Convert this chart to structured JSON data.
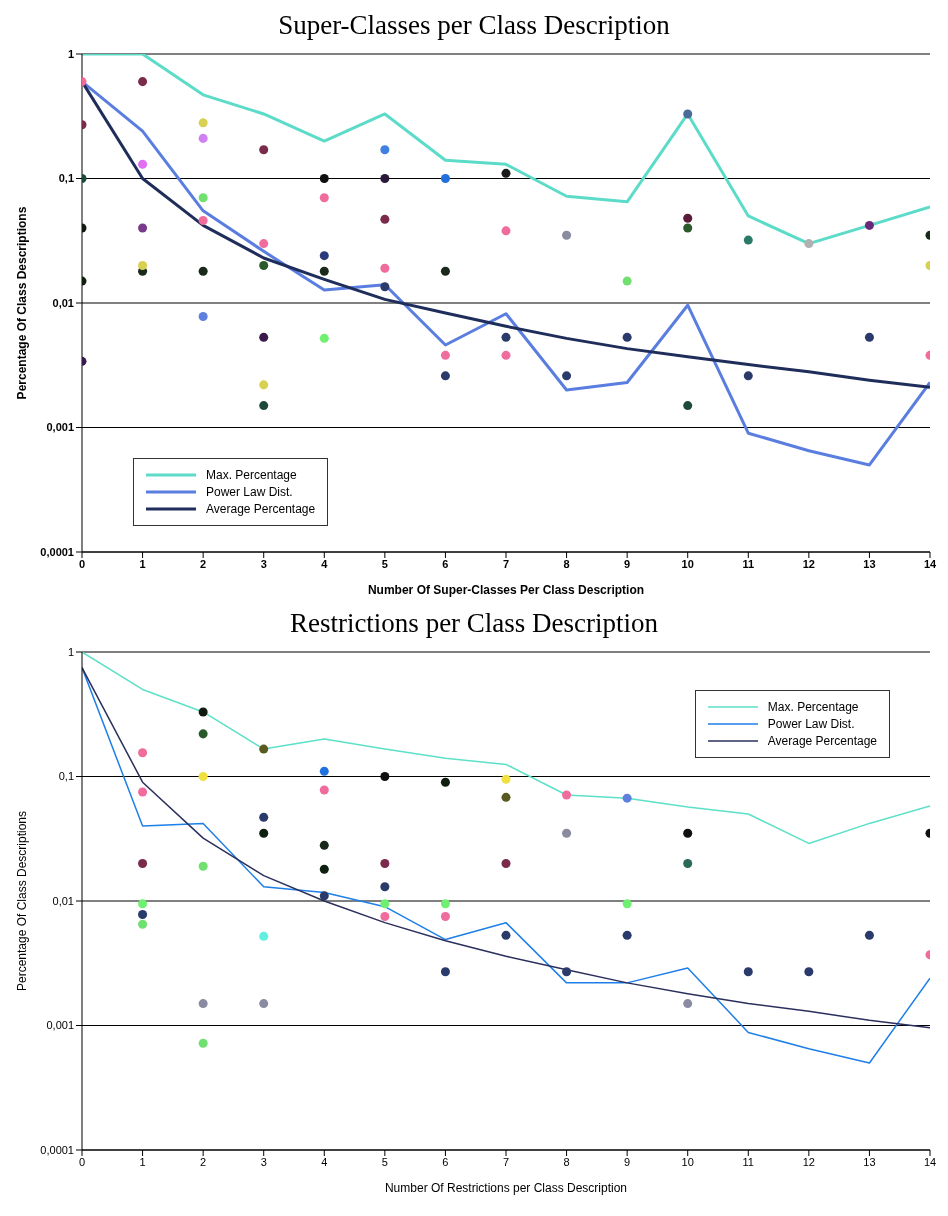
{
  "chart_data": [
    {
      "type": "line",
      "title": "Super-Classes per Class Description",
      "xlabel": "Number Of Super-Classes Per Class Description",
      "ylabel": "Percentage Of Class Descriptions",
      "x": [
        0,
        1,
        2,
        3,
        4,
        5,
        6,
        7,
        8,
        9,
        10,
        11,
        12,
        13,
        14
      ],
      "log": "y",
      "xlim": [
        0,
        14
      ],
      "xticks": [
        0,
        1,
        2,
        3,
        4,
        5,
        6,
        7,
        8,
        9,
        10,
        11,
        12,
        13,
        14
      ],
      "ylim": [
        0.0001,
        1
      ],
      "yticks": [
        {
          "value": 0.0001,
          "label": "0,0001"
        },
        {
          "value": 0.001,
          "label": "0,001"
        },
        {
          "value": 0.01,
          "label": "0,01"
        },
        {
          "value": 0.1,
          "label": "0,1"
        },
        1
      ],
      "grid": "y",
      "legend": "bottom left",
      "marker": "none",
      "line_style": "solid",
      "series": [
        {
          "name": "Max. Percentage",
          "color": "#5cdcc8",
          "values": [
            1,
            1,
            0.47,
            0.33,
            0.2,
            0.33,
            0.14,
            0.13,
            0.072,
            0.065,
            0.33,
            0.05,
            0.03,
            0.042,
            0.059
          ]
        },
        {
          "name": "Power Law Dist.",
          "color": "#5a7de0",
          "values": [
            0.6,
            0.24,
            0.055,
            0.026,
            0.0127,
            0.014,
            0.0046,
            0.0082,
            0.002,
            0.0023,
            0.0096,
            0.0009,
            0.00065,
            0.0005,
            0.0023
          ]
        },
        {
          "name": "Average Percentage",
          "color": "#1f2d5a",
          "values": [
            0.6,
            0.1,
            0.042,
            0.023,
            0.0155,
            0.0107,
            0.0083,
            0.0065,
            0.0052,
            0.0043,
            0.0037,
            0.0032,
            0.0028,
            0.0024,
            0.0021
          ]
        },
        {
          "type": "scatter",
          "marker": "circle",
          "x": [
            0,
            0,
            0,
            0,
            0,
            0,
            1,
            1,
            1,
            1,
            1,
            2,
            2,
            2,
            2,
            2,
            2,
            3,
            3,
            3,
            3,
            3,
            3,
            4,
            4,
            4,
            4,
            4,
            5,
            5,
            5,
            5,
            5,
            6,
            6,
            6,
            6,
            7,
            7,
            7,
            7,
            8,
            8,
            9,
            9,
            10,
            10,
            10,
            10,
            11,
            11,
            12,
            13,
            13,
            14,
            14,
            14
          ],
          "values": [
            0.1,
            0.04,
            0.015,
            0.0034,
            0.6,
            0.27,
            0.6,
            0.04,
            0.018,
            0.02,
            0.13,
            0.28,
            0.21,
            0.07,
            0.046,
            0.018,
            0.0078,
            0.17,
            0.03,
            0.0053,
            0.0015,
            0.0022,
            0.02,
            0.07,
            0.024,
            0.0052,
            0.018,
            0.1,
            0.1,
            0.047,
            0.019,
            0.0135,
            0.17,
            0.1,
            0.0038,
            0.0026,
            0.018,
            0.11,
            0.038,
            0.0053,
            0.0038,
            0.0026,
            0.035,
            0.0053,
            0.015,
            0.33,
            0.048,
            0.0015,
            0.04,
            0.0026,
            0.032,
            0.03,
            0.0053,
            0.042,
            0.0038,
            0.035,
            0.02
          ],
          "colors": [
            "#1f4a3a",
            "#101a10",
            "#102010",
            "#3a1a4a",
            "#f06c9c",
            "#7a2a4a",
            "#7a2a4a",
            "#7a3a8a",
            "#1a2a1a",
            "#d8d050",
            "#e070f0",
            "#d8d050",
            "#d080f0",
            "#70e070",
            "#f06c9c",
            "#1a2a1a",
            "#6080e0",
            "#7a2a4a",
            "#f06c9c",
            "#3a1a4a",
            "#1f4a3a",
            "#d8d050",
            "#2a5a2a",
            "#f06c9c",
            "#2a3a7a",
            "#70f070",
            "#1a2a1a",
            "#101010",
            "#2a1a3a",
            "#7a2a4a",
            "#f06c9c",
            "#2a3a6a",
            "#4080e0",
            "#2070e0",
            "#f06c9c",
            "#2a3a6a",
            "#1a2a1a",
            "#1a1a1a",
            "#f06c9c",
            "#2a3a6a",
            "#f06c9c",
            "#2a3a6a",
            "#8a8aa0",
            "#2a3a6a",
            "#70e070",
            "#4a6a9a",
            "#5a1a3a",
            "#1f4a3a",
            "#2a5a2a",
            "#2a3a6a",
            "#2a7a6a",
            "#b0b0b0",
            "#2a3a6a",
            "#6a2a7a",
            "#f06c9c",
            "#1a2a1a",
            "#d8d050"
          ]
        }
      ]
    },
    {
      "type": "line",
      "title": "Restrictions per Class Description",
      "xlabel": "Number Of Restrictions per Class Description",
      "ylabel": "Percentage Of Class Descriptions",
      "x": [
        0,
        1,
        2,
        3,
        4,
        5,
        6,
        7,
        8,
        9,
        10,
        11,
        12,
        13,
        14
      ],
      "log": "y",
      "xlim": [
        0,
        14
      ],
      "xticks": [
        0,
        1,
        2,
        3,
        4,
        5,
        6,
        7,
        8,
        9,
        10,
        11,
        12,
        13,
        14
      ],
      "ylim": [
        0.0001,
        1
      ],
      "yticks": [
        {
          "value": 0.0001,
          "label": "0,0001"
        },
        {
          "value": 0.001,
          "label": "0,001"
        },
        {
          "value": 0.01,
          "label": "0,01"
        },
        {
          "value": 0.1,
          "label": "0,1"
        },
        1
      ],
      "grid": "y",
      "legend": "top right",
      "marker": "none",
      "line_style": "solid",
      "series": [
        {
          "name": "Max. Percentage",
          "color": "#5ce0c8",
          "values": [
            1,
            0.5,
            0.33,
            0.166,
            0.2,
            0.166,
            0.14,
            0.125,
            0.071,
            0.067,
            0.057,
            0.05,
            0.029,
            0.042,
            0.058
          ]
        },
        {
          "name": "Power Law Dist.",
          "color": "#1e7fe8",
          "values": [
            0.75,
            0.04,
            0.042,
            0.013,
            0.0117,
            0.009,
            0.0049,
            0.0067,
            0.0022,
            0.0022,
            0.0029,
            0.00088,
            0.00065,
            0.0005,
            0.0024
          ]
        },
        {
          "name": "Average Percentage",
          "color": "#2a2f5c",
          "values": [
            0.75,
            0.09,
            0.032,
            0.016,
            0.01,
            0.0067,
            0.0048,
            0.0036,
            0.0028,
            0.0022,
            0.0018,
            0.0015,
            0.0013,
            0.0011,
            0.00096
          ]
        },
        {
          "type": "scatter",
          "marker": "circle",
          "x": [
            1,
            1,
            1,
            1,
            1,
            1,
            2,
            2,
            2,
            2,
            2,
            2,
            3,
            3,
            3,
            3,
            3,
            4,
            4,
            4,
            4,
            4,
            5,
            5,
            5,
            5,
            5,
            6,
            6,
            6,
            6,
            7,
            7,
            7,
            7,
            8,
            8,
            8,
            9,
            9,
            9,
            10,
            10,
            10,
            11,
            12,
            13,
            14,
            14
          ],
          "values": [
            0.0078,
            0.0065,
            0.02,
            0.155,
            0.075,
            0.0095,
            0.33,
            0.22,
            0.0015,
            0.00072,
            0.1,
            0.019,
            0.166,
            0.0052,
            0.0015,
            0.035,
            0.047,
            0.018,
            0.11,
            0.078,
            0.028,
            0.011,
            0.1,
            0.0075,
            0.013,
            0.0095,
            0.02,
            0.09,
            0.0027,
            0.0075,
            0.0095,
            0.0053,
            0.095,
            0.068,
            0.02,
            0.071,
            0.0027,
            0.035,
            0.0053,
            0.0095,
            0.067,
            0.0015,
            0.02,
            0.035,
            0.0027,
            0.0027,
            0.0053,
            0.0037,
            0.035
          ],
          "colors": [
            "#2a3a6a",
            "#70e070",
            "#7a2a4a",
            "#f06c9c",
            "#f06c9c",
            "#70f070",
            "#101a10",
            "#2a5a2a",
            "#8a8aa0",
            "#70e070",
            "#f0e040",
            "#70e070",
            "#5a5a20",
            "#60f0e0",
            "#8a8aa0",
            "#102010",
            "#2a3a6a",
            "#102010",
            "#2070e0",
            "#f06c9c",
            "#1a2a1a",
            "#2a3a6a",
            "#101010",
            "#f06c9c",
            "#2a3a6a",
            "#70f070",
            "#7a2a4a",
            "#102010",
            "#2a3a6a",
            "#f06c9c",
            "#70f070",
            "#2a3a6a",
            "#f0e040",
            "#5a5a20",
            "#7a2a4a",
            "#f06c9c",
            "#2a3a6a",
            "#8a8aa0",
            "#2a3a6a",
            "#70f070",
            "#6080e0",
            "#8a8aa0",
            "#2a6a5a",
            "#101010",
            "#2a3a6a",
            "#2a3a6a",
            "#2a3a6a",
            "#f06c9c",
            "#101010"
          ]
        }
      ]
    }
  ]
}
